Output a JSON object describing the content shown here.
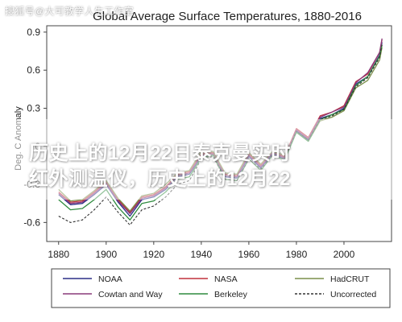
{
  "watermark": "搜狐号@大可教学人生工作室",
  "headline": {
    "line1": "历史上的12月22日泰克曼实时",
    "line2": "红外测温仪，历史上的12月22"
  },
  "colors": {
    "NOAA": "#2b2f86",
    "NASA": "#c0303b",
    "HadCRUT": "#7a8f4a",
    "Cowtan and Way": "#8a3a7a",
    "Berkeley": "#2e8b3e",
    "Uncorrected": "#333333"
  },
  "chart_data": {
    "type": "line",
    "title": "Global Average Surface Temperatures, 1880-2016",
    "xlabel": "",
    "ylabel": "Deg. C Anomaly",
    "xlim": [
      1875,
      2020
    ],
    "ylim": [
      -0.75,
      0.95
    ],
    "xticks": [
      1880,
      1900,
      1920,
      1940,
      1960,
      1980,
      2000
    ],
    "yticks": [
      -0.6,
      -0.3,
      0,
      0.3,
      0.6,
      0.9
    ],
    "ytick_labels": [
      "-0.6",
      "-0.3",
      "0",
      "0.3",
      "0.6",
      "0.9"
    ],
    "legend_position": "bottom",
    "grid": false,
    "x": [
      1880,
      1885,
      1890,
      1895,
      1900,
      1905,
      1910,
      1915,
      1920,
      1925,
      1930,
      1935,
      1940,
      1945,
      1950,
      1955,
      1960,
      1965,
      1970,
      1975,
      1980,
      1985,
      1990,
      1995,
      2000,
      2005,
      2010,
      2015,
      2016
    ],
    "series": [
      {
        "name": "NOAA",
        "values": [
          -0.38,
          -0.46,
          -0.45,
          -0.38,
          -0.3,
          -0.44,
          -0.55,
          -0.42,
          -0.4,
          -0.34,
          -0.24,
          -0.22,
          -0.08,
          -0.06,
          -0.24,
          -0.25,
          -0.08,
          -0.17,
          -0.06,
          -0.1,
          0.12,
          0.05,
          0.22,
          0.25,
          0.3,
          0.49,
          0.55,
          0.72,
          0.82
        ]
      },
      {
        "name": "NASA",
        "values": [
          -0.36,
          -0.44,
          -0.43,
          -0.36,
          -0.28,
          -0.42,
          -0.52,
          -0.4,
          -0.38,
          -0.32,
          -0.22,
          -0.2,
          -0.06,
          -0.05,
          -0.22,
          -0.23,
          -0.06,
          -0.15,
          -0.05,
          -0.08,
          0.14,
          0.07,
          0.24,
          0.27,
          0.32,
          0.51,
          0.57,
          0.74,
          0.84
        ]
      },
      {
        "name": "HadCRUT",
        "values": [
          -0.34,
          -0.43,
          -0.42,
          -0.35,
          -0.27,
          -0.41,
          -0.51,
          -0.39,
          -0.37,
          -0.3,
          -0.21,
          -0.19,
          -0.04,
          -0.04,
          -0.21,
          -0.22,
          -0.05,
          -0.14,
          -0.04,
          -0.07,
          0.11,
          0.04,
          0.2,
          0.23,
          0.28,
          0.46,
          0.52,
          0.68,
          0.78
        ]
      },
      {
        "name": "Cowtan and Way",
        "values": [
          -0.37,
          -0.45,
          -0.44,
          -0.37,
          -0.29,
          -0.43,
          -0.53,
          -0.41,
          -0.39,
          -0.33,
          -0.23,
          -0.21,
          -0.07,
          -0.06,
          -0.23,
          -0.24,
          -0.07,
          -0.16,
          -0.05,
          -0.09,
          0.13,
          0.06,
          0.23,
          0.27,
          0.31,
          0.5,
          0.58,
          0.74,
          0.85
        ]
      },
      {
        "name": "Berkeley",
        "values": [
          -0.42,
          -0.5,
          -0.49,
          -0.42,
          -0.34,
          -0.48,
          -0.58,
          -0.45,
          -0.43,
          -0.36,
          -0.26,
          -0.24,
          -0.09,
          -0.07,
          -0.26,
          -0.27,
          -0.1,
          -0.19,
          -0.07,
          -0.11,
          0.11,
          0.04,
          0.21,
          0.25,
          0.29,
          0.48,
          0.55,
          0.71,
          0.8
        ]
      },
      {
        "name": "Uncorrected",
        "dashed": true,
        "values": [
          -0.55,
          -0.6,
          -0.58,
          -0.5,
          -0.4,
          -0.52,
          -0.62,
          -0.5,
          -0.47,
          -0.4,
          -0.3,
          -0.27,
          -0.1,
          -0.08,
          -0.26,
          -0.27,
          -0.1,
          -0.18,
          -0.07,
          -0.1,
          0.12,
          0.05,
          0.21,
          0.24,
          0.29,
          0.47,
          0.54,
          0.7,
          0.8
        ]
      }
    ]
  }
}
